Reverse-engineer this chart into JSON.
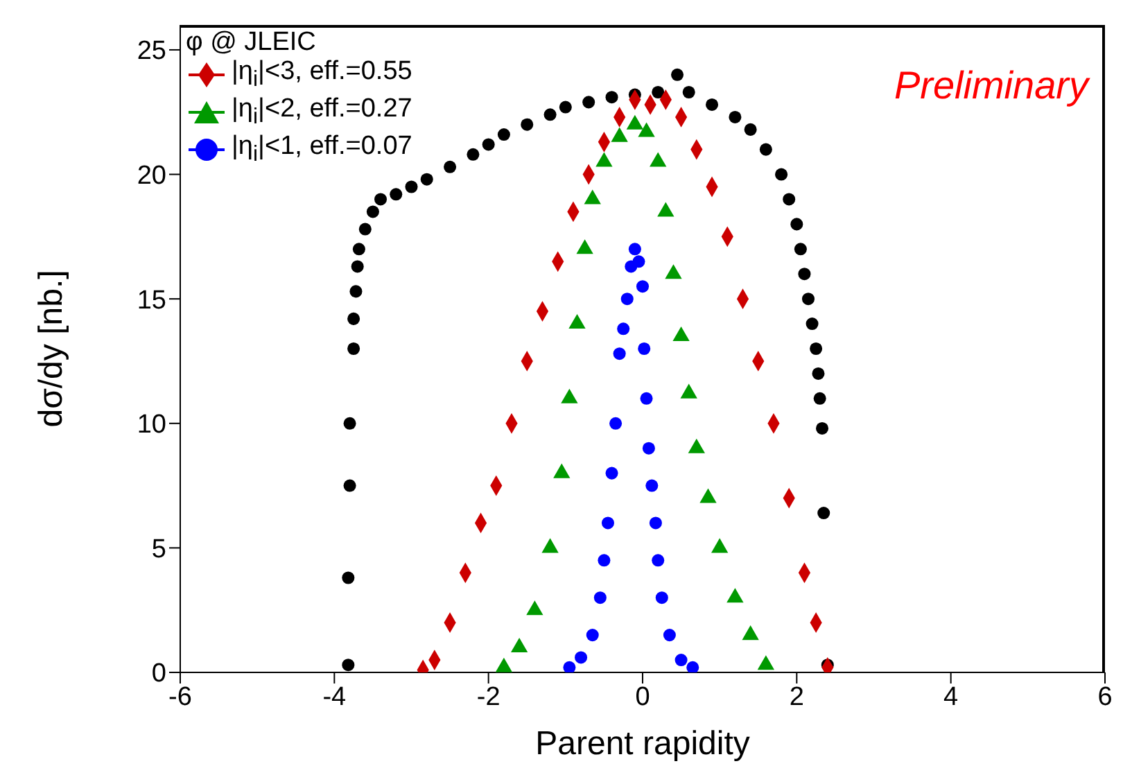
{
  "chart_data": {
    "type": "scatter",
    "legend_title": "φ @ JLEIC",
    "xlabel": "Parent rapidity",
    "ylabel": "dσ/dy [nb.]",
    "annotations": [
      "Preliminary"
    ],
    "xlim": [
      -6,
      6
    ],
    "xticks": [
      -6,
      -4,
      -2,
      0,
      2,
      4,
      6
    ],
    "ylim": [
      0,
      26
    ],
    "yticks": [
      0,
      5,
      10,
      15,
      20,
      25
    ],
    "grid": false,
    "legend": "top left",
    "series": [
      {
        "color": "#000000",
        "marker": "circle",
        "x": [
          -3.82,
          -3.82,
          -3.8,
          -3.8,
          -3.75,
          -3.75,
          -3.72,
          -3.7,
          -3.68,
          -3.6,
          -3.5,
          -3.4,
          -3.2,
          -3.0,
          -2.8,
          -2.5,
          -2.2,
          -2.0,
          -1.8,
          -1.5,
          -1.2,
          -1.0,
          -0.7,
          -0.4,
          -0.1,
          0.2,
          0.45,
          0.6,
          0.9,
          1.2,
          1.4,
          1.6,
          1.8,
          1.9,
          2.0,
          2.05,
          2.1,
          2.15,
          2.2,
          2.25,
          2.28,
          2.3,
          2.33,
          2.35,
          2.4
        ],
        "values": [
          0.3,
          3.8,
          7.5,
          10,
          13,
          14.2,
          15.3,
          16.3,
          17,
          17.8,
          18.5,
          19,
          19.2,
          19.5,
          19.8,
          20.3,
          20.8,
          21.2,
          21.6,
          22,
          22.4,
          22.7,
          22.9,
          23.1,
          23.2,
          23.3,
          24,
          23.3,
          22.8,
          22.3,
          21.8,
          21,
          20,
          19,
          18,
          17,
          16,
          15,
          14,
          13,
          12,
          11,
          9.8,
          6.4,
          0.3
        ]
      },
      {
        "name": "|η$_{i}$|<3, eff.=0.55",
        "color": "#cc0000",
        "marker": "diamond",
        "x": [
          -2.85,
          -2.7,
          -2.5,
          -2.3,
          -2.1,
          -1.9,
          -1.7,
          -1.5,
          -1.3,
          -1.1,
          -0.9,
          -0.7,
          -0.5,
          -0.3,
          -0.1,
          0.1,
          0.3,
          0.5,
          0.7,
          0.9,
          1.1,
          1.3,
          1.5,
          1.7,
          1.9,
          2.1,
          2.25,
          2.4
        ],
        "values": [
          0.1,
          0.5,
          2,
          4,
          6,
          7.5,
          10,
          12.5,
          14.5,
          16.5,
          18.5,
          20,
          21.3,
          22.3,
          23,
          22.8,
          23,
          22.3,
          21,
          19.5,
          17.5,
          15,
          12.5,
          10,
          7,
          4,
          2,
          0.2
        ]
      },
      {
        "name": "|η$_{i}$|<2, eff.=0.27",
        "color": "#009900",
        "marker": "triangle",
        "x": [
          -1.8,
          -1.6,
          -1.4,
          -1.2,
          -1.05,
          -0.95,
          -0.85,
          -0.75,
          -0.65,
          -0.5,
          -0.3,
          -0.1,
          0.05,
          0.2,
          0.3,
          0.4,
          0.5,
          0.6,
          0.7,
          0.85,
          1.0,
          1.2,
          1.4,
          1.6
        ],
        "values": [
          0.2,
          1,
          2.5,
          5,
          8,
          11,
          14,
          17,
          19,
          20.5,
          21.5,
          22,
          21.7,
          20.5,
          18.5,
          16,
          13.5,
          11.2,
          9,
          7,
          5,
          3,
          1.5,
          0.3
        ]
      },
      {
        "name": "|η$_{i}$|<1, eff.=0.07",
        "color": "#0000ff",
        "marker": "circle",
        "x": [
          -0.95,
          -0.8,
          -0.65,
          -0.55,
          -0.5,
          -0.45,
          -0.4,
          -0.35,
          -0.3,
          -0.25,
          -0.2,
          -0.15,
          -0.1,
          -0.05,
          0,
          0.02,
          0.05,
          0.08,
          0.12,
          0.17,
          0.2,
          0.25,
          0.35,
          0.5,
          0.65
        ],
        "values": [
          0.2,
          0.6,
          1.5,
          3,
          4.5,
          6,
          8,
          10,
          12.8,
          13.8,
          15,
          16.3,
          17,
          16.5,
          15.5,
          13,
          11,
          9,
          7.5,
          6,
          4.5,
          3,
          1.5,
          0.5,
          0.2
        ]
      }
    ]
  }
}
